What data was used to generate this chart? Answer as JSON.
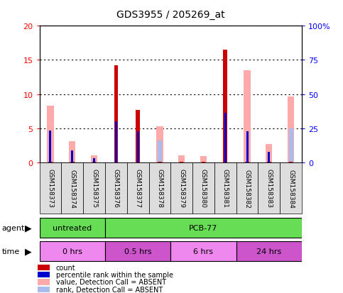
{
  "title": "GDS3955 / 205269_at",
  "samples": [
    "GSM158373",
    "GSM158374",
    "GSM158375",
    "GSM158376",
    "GSM158377",
    "GSM158378",
    "GSM158379",
    "GSM158380",
    "GSM158381",
    "GSM158382",
    "GSM158383",
    "GSM158384"
  ],
  "count": [
    0.05,
    0.05,
    0.05,
    14.2,
    7.7,
    0.05,
    0.05,
    0.05,
    16.5,
    0.05,
    0.05,
    0.05
  ],
  "percentile_rank": [
    4.6,
    1.7,
    0.6,
    6.0,
    4.5,
    0.0,
    0.0,
    0.0,
    7.3,
    4.5,
    1.5,
    0.0
  ],
  "value_absent": [
    8.3,
    3.1,
    1.0,
    0.0,
    0.0,
    5.3,
    1.0,
    0.9,
    0.0,
    13.5,
    2.7,
    9.6
  ],
  "rank_absent": [
    0.0,
    0.0,
    0.0,
    0.0,
    0.0,
    3.2,
    0.0,
    0.0,
    0.0,
    0.0,
    0.0,
    5.0
  ],
  "agent_groups": [
    {
      "label": "untreated",
      "start": 0,
      "end": 3,
      "color": "#66dd55"
    },
    {
      "label": "PCB-77",
      "start": 3,
      "end": 12,
      "color": "#66dd55"
    }
  ],
  "time_groups": [
    {
      "label": "0 hrs",
      "start": 0,
      "end": 3,
      "color": "#ee88ee"
    },
    {
      "label": "0.5 hrs",
      "start": 3,
      "end": 6,
      "color": "#cc55cc"
    },
    {
      "label": "6 hrs",
      "start": 6,
      "end": 9,
      "color": "#ee88ee"
    },
    {
      "label": "24 hrs",
      "start": 9,
      "end": 12,
      "color": "#cc55cc"
    }
  ],
  "ylim_left": [
    0,
    20
  ],
  "ylim_right": [
    0,
    100
  ],
  "yticks_left": [
    0,
    5,
    10,
    15,
    20
  ],
  "yticks_right": [
    0,
    25,
    50,
    75,
    100
  ],
  "yticklabels_right": [
    "0",
    "25",
    "50",
    "75",
    "100%"
  ],
  "count_color": "#cc0000",
  "percentile_color": "#0000cc",
  "value_absent_color": "#ffaaaa",
  "rank_absent_color": "#aabbee",
  "grid_color": "#000000",
  "bg_color": "#ffffff",
  "legend_items": [
    {
      "label": "count",
      "color": "#cc0000"
    },
    {
      "label": "percentile rank within the sample",
      "color": "#0000cc"
    },
    {
      "label": "value, Detection Call = ABSENT",
      "color": "#ffaaaa"
    },
    {
      "label": "rank, Detection Call = ABSENT",
      "color": "#aabbee"
    }
  ]
}
